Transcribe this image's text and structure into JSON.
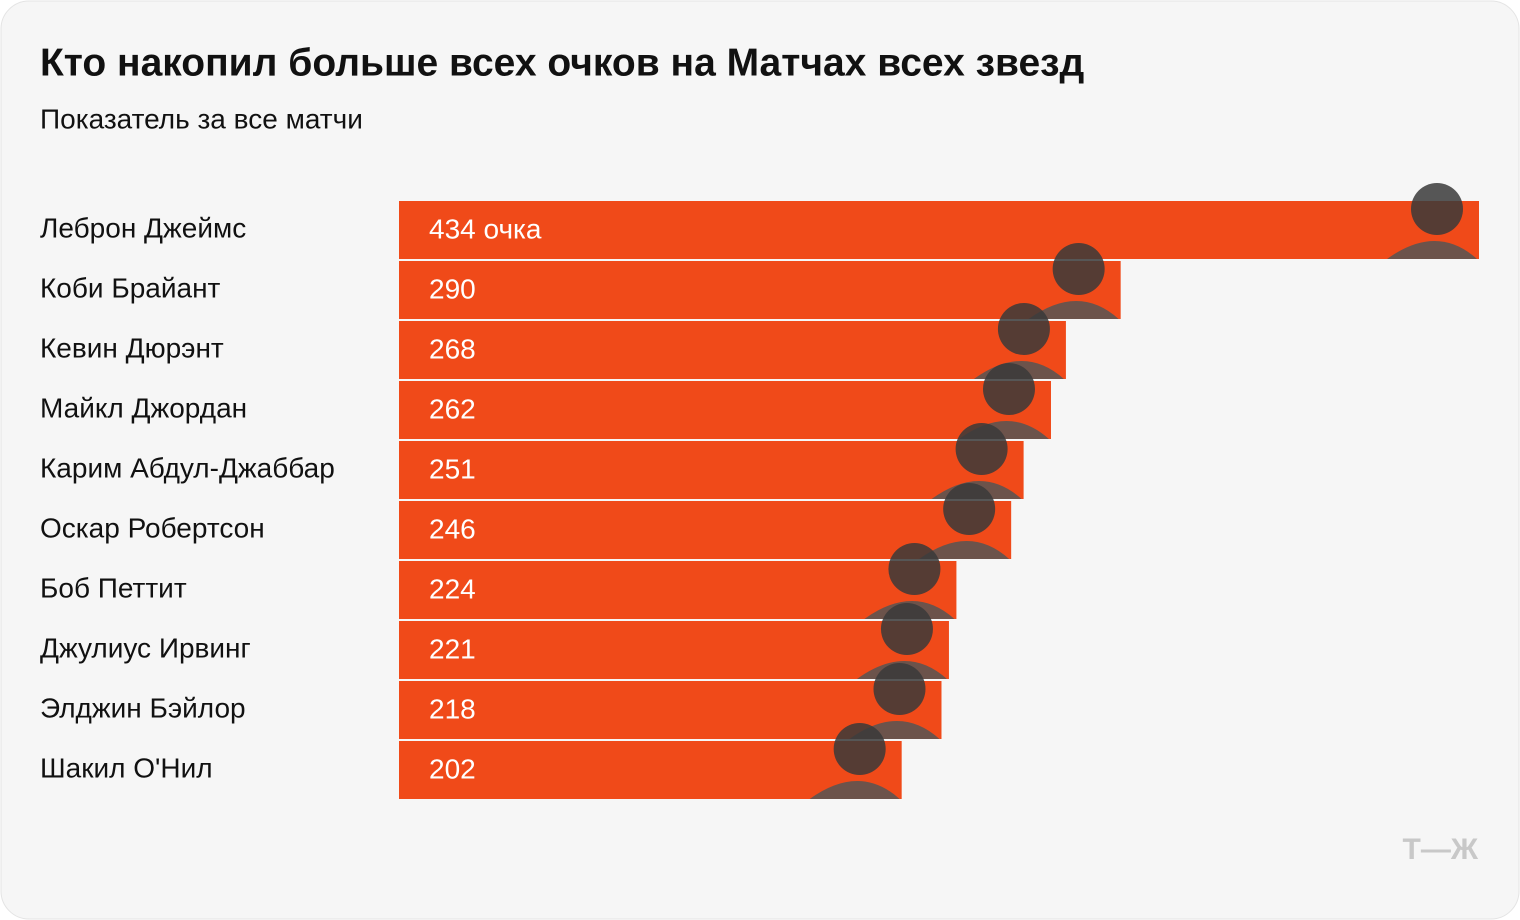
{
  "chart_data": {
    "type": "bar",
    "orientation": "horizontal",
    "title": "Кто накопил больше всех очков на Матчах всех звезд",
    "subtitle": "Показатель за все матчи",
    "categories": [
      "Леброн Джеймс",
      "Коби Брайант",
      "Кевин Дюрэнт",
      "Майкл Джордан",
      "Карим Абдул-Джаббар",
      "Оскар Робертсон",
      "Боб Петтит",
      "Джулиус Ирвинг",
      "Элджин Бэйлор",
      "Шакил О'Нил"
    ],
    "values": [
      434,
      290,
      268,
      262,
      251,
      246,
      224,
      221,
      218,
      202
    ],
    "value_labels": [
      "434 очка",
      null,
      null,
      null,
      null,
      null,
      null,
      null,
      null,
      null
    ],
    "color": "#f04a19"
  },
  "logo": "Т—Ж"
}
